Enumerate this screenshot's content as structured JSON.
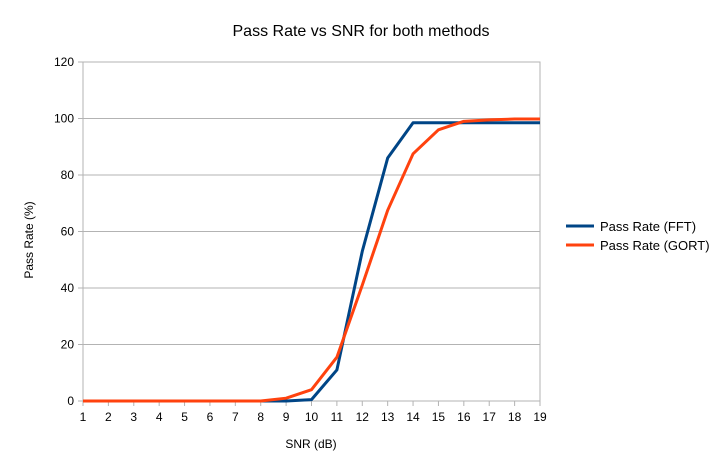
{
  "chart_data": {
    "type": "line",
    "title": "Pass Rate vs SNR for both methods",
    "xlabel": "SNR (dB)",
    "ylabel": "Pass Rate (%)",
    "x": [
      1,
      2,
      3,
      4,
      5,
      6,
      7,
      8,
      9,
      10,
      11,
      12,
      13,
      14,
      15,
      16,
      17,
      18,
      19
    ],
    "xlim": [
      1,
      19
    ],
    "ylim": [
      0,
      120
    ],
    "yticks": [
      0,
      20,
      40,
      60,
      80,
      100,
      120
    ],
    "grid": true,
    "legend_position": "right",
    "series": [
      {
        "name": "Pass Rate (FFT)",
        "color": "#004586",
        "values": [
          0,
          0,
          0,
          0,
          0,
          0,
          0,
          0,
          0,
          0.5,
          11,
          53,
          86,
          98.5,
          98.5,
          98.5,
          98.5,
          98.5,
          98.5
        ]
      },
      {
        "name": "Pass Rate (GORT)",
        "color": "#ff420e",
        "values": [
          0,
          0,
          0,
          0,
          0,
          0,
          0,
          0,
          1,
          4,
          15.5,
          41,
          67.5,
          87.5,
          96,
          99,
          99.5,
          99.8,
          99.8
        ]
      }
    ]
  }
}
